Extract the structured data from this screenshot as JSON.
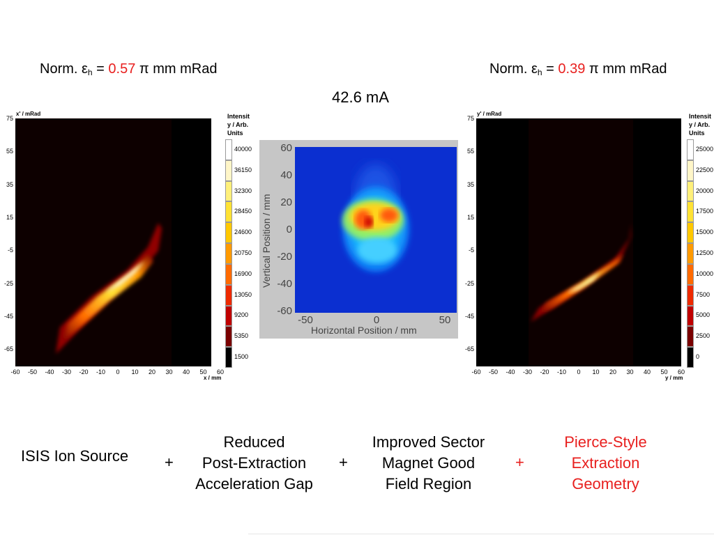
{
  "left_header": {
    "prefix": "Norm. ε",
    "sub": "h",
    "eq": " = ",
    "value": "0.57",
    "unit": " π mm mRad"
  },
  "right_header": {
    "prefix": "Norm. ε",
    "sub": "h",
    "eq": " = ",
    "value": "0.39",
    "unit": " π mm mRad"
  },
  "current": "42.6 mA",
  "left_plot": {
    "y_axis_label": "x' / mRad",
    "x_axis_label": "x / mm",
    "y_ticks": [
      "75",
      "55",
      "35",
      "15",
      "-5",
      "-25",
      "-45",
      "-65"
    ],
    "x_ticks": [
      "-60",
      "-50",
      "-40",
      "-30",
      "-20",
      "-10",
      "0",
      "10",
      "20",
      "30",
      "40",
      "50",
      "60"
    ],
    "colorbar_title": [
      "Intensit",
      "y / Arb.",
      "Units"
    ],
    "colorbar_labels": [
      "40000",
      "36150",
      "32300",
      "28450",
      "24600",
      "20750",
      "16900",
      "13050",
      "9200",
      "5350",
      "1500"
    ]
  },
  "right_plot": {
    "y_axis_label": "y' / mRad",
    "x_axis_label": "y / mm",
    "y_ticks": [
      "75",
      "55",
      "35",
      "15",
      "-5",
      "-25",
      "-45",
      "-65"
    ],
    "x_ticks": [
      "-60",
      "-50",
      "-40",
      "-30",
      "-20",
      "-10",
      "0",
      "10",
      "20",
      "30",
      "40",
      "50",
      "60"
    ],
    "colorbar_title": [
      "Intensit",
      "y / Arb.",
      "Units"
    ],
    "colorbar_labels": [
      "25000",
      "22500",
      "20000",
      "17500",
      "15000",
      "12500",
      "10000",
      "7500",
      "5000",
      "2500",
      "0"
    ]
  },
  "center_plot": {
    "x_label": "Horizontal Position / mm",
    "y_label": "Vertical Position / mm",
    "x_ticks": [
      "-50",
      "0",
      "50"
    ],
    "y_ticks": [
      "60",
      "40",
      "20",
      "0",
      "-20",
      "-40",
      "-60"
    ]
  },
  "colors": {
    "red_text": "#e8201f",
    "colorbar": [
      "#ffffff",
      "#fff6c8",
      "#fff07a",
      "#ffe234",
      "#ffc800",
      "#ff9a00",
      "#ff6a00",
      "#ee2a00",
      "#c00000",
      "#7a0000",
      "#000000"
    ]
  },
  "bottom": {
    "item1": "ISIS Ion Source",
    "plus": "+",
    "item2": [
      "Reduced",
      "Post-Extraction",
      "Acceleration Gap"
    ],
    "item3": [
      "Improved Sector",
      "Magnet Good",
      "Field Region"
    ],
    "item4": [
      "Pierce-Style",
      "Extraction",
      "Geometry"
    ]
  }
}
